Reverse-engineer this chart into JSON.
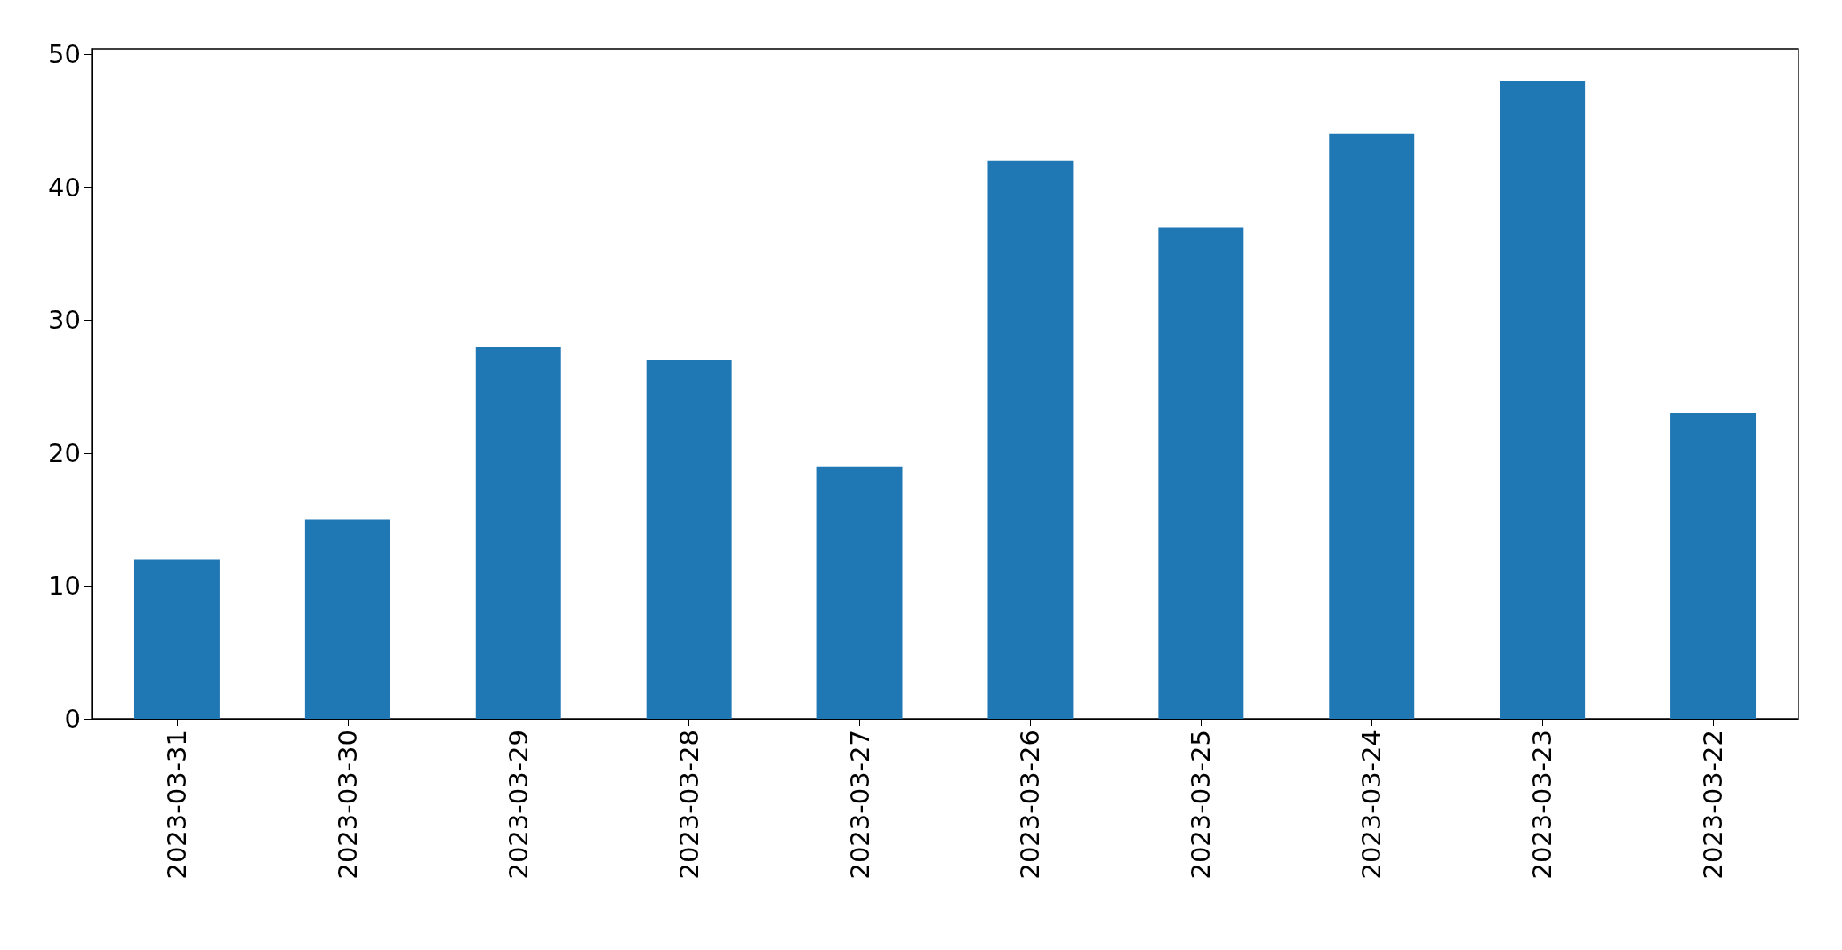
{
  "chart_data": {
    "type": "bar",
    "categories": [
      "2023-03-31",
      "2023-03-30",
      "2023-03-29",
      "2023-03-28",
      "2023-03-27",
      "2023-03-26",
      "2023-03-25",
      "2023-03-24",
      "2023-03-23",
      "2023-03-22"
    ],
    "values": [
      12,
      15,
      28,
      27,
      19,
      42,
      37,
      44,
      48,
      23
    ],
    "color": "#1f77b4",
    "ylim": [
      0,
      50.4
    ],
    "yticks": [
      0,
      10,
      20,
      30,
      40,
      50
    ],
    "grid": false
  }
}
